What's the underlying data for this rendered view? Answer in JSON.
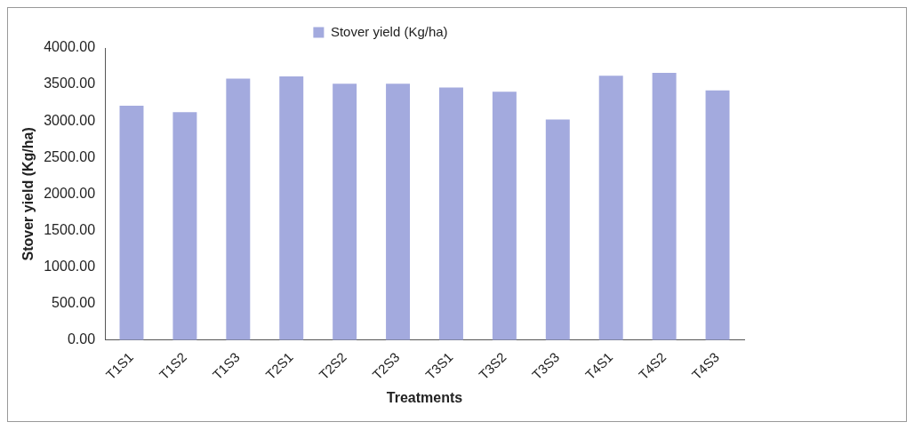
{
  "chart_data": {
    "type": "bar",
    "xlabel": "Treatments",
    "ylabel": "Stover yield (Kg/ha)",
    "legend": "top",
    "grid": false,
    "categories": [
      "T1S1",
      "T1S2",
      "T1S3",
      "T2S1",
      "T2S2",
      "T2S3",
      "T3S1",
      "T3S2",
      "T3S3",
      "T4S1",
      "T4S2",
      "T4S3"
    ],
    "series": [
      {
        "name": "Stover yield (Kg/ha)",
        "color": "#a3aade",
        "values": [
          3210,
          3120,
          3580,
          3610,
          3510,
          3510,
          3460,
          3400,
          3020,
          3620,
          3660,
          3420
        ]
      }
    ],
    "ylim": [
      0,
      4000
    ],
    "yticks": [
      {
        "value": 0,
        "label": "0.00"
      },
      {
        "value": 500,
        "label": "500.00"
      },
      {
        "value": 1000,
        "label": "1000.00"
      },
      {
        "value": 1500,
        "label": "1500.00"
      },
      {
        "value": 2000,
        "label": "2000.00"
      },
      {
        "value": 2500,
        "label": "2500.00"
      },
      {
        "value": 3000,
        "label": "3000.00"
      },
      {
        "value": 3500,
        "label": "3500.00"
      },
      {
        "value": 4000,
        "label": "4000.00"
      }
    ]
  }
}
